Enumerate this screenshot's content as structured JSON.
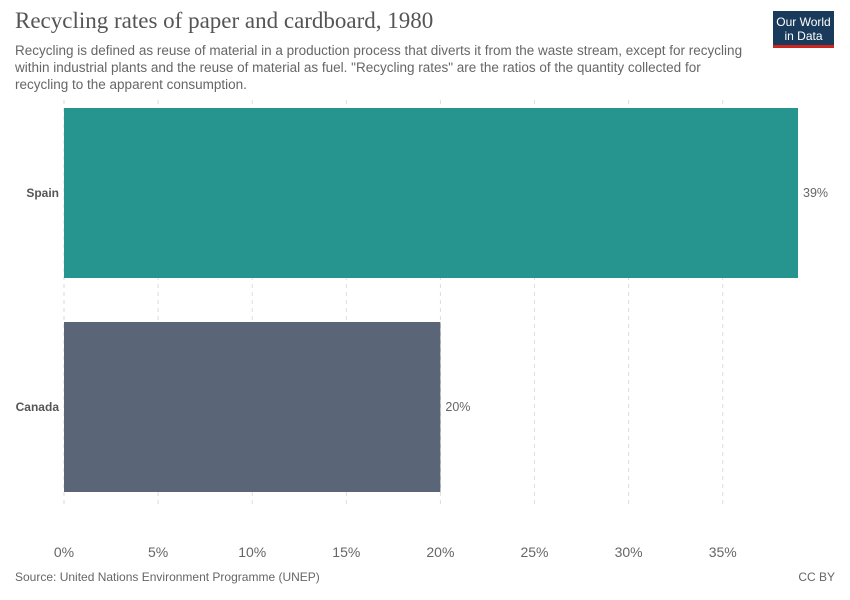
{
  "header": {
    "title": "Recycling rates of paper and cardboard, 1980",
    "subtitle": "Recycling is defined as reuse of material in a production process that diverts it from the waste stream, except for recycling within industrial plants and the reuse of material as fuel. \"Recycling rates\" are the ratios of the quantity collected for recycling to the apparent consumption.",
    "logo_line1": "Our World",
    "logo_line2": "in Data"
  },
  "footer": {
    "source": "Source: United Nations Environment Programme (UNEP)",
    "license": "CC BY"
  },
  "colors": {
    "logo_bg": "#1a3a5c",
    "logo_accent": "#ce261e"
  },
  "chart_data": {
    "type": "bar",
    "orientation": "horizontal",
    "title": "Recycling rates of paper and cardboard, 1980",
    "categories": [
      "Spain",
      "Canada"
    ],
    "values": [
      39,
      20
    ],
    "value_labels": [
      "39%",
      "20%"
    ],
    "colors": [
      "#26948f",
      "#5b6578"
    ],
    "xlim": [
      0,
      39
    ],
    "xticks": [
      0,
      5,
      10,
      15,
      20,
      25,
      30,
      35
    ],
    "xtick_labels": [
      "0%",
      "5%",
      "10%",
      "15%",
      "20%",
      "25%",
      "30%",
      "35%"
    ],
    "grid": "vertical dashed"
  }
}
